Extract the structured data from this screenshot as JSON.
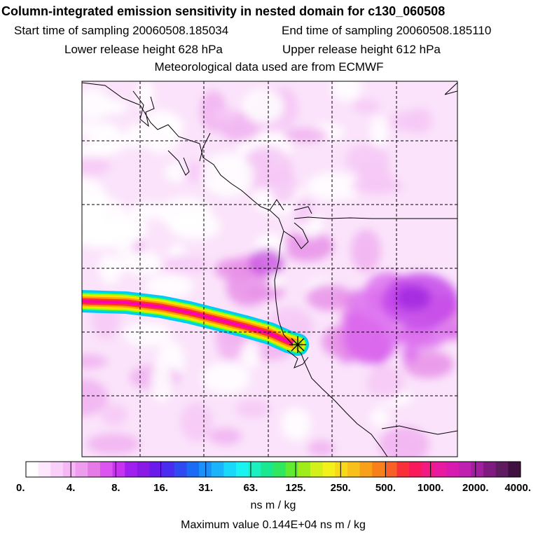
{
  "header": {
    "title": "Column-integrated emission sensitivity in nested domain for c130_060508",
    "start_sampling": "Start time of sampling 20060508.185034",
    "end_sampling": "End time of sampling 20060508.185110",
    "lower_release": "Lower release height  628 hPa",
    "upper_release": "Upper release height  612 hPa",
    "met_data": "Meteorological data used are from ECMWF"
  },
  "colorbar": {
    "colors": [
      "#ffffff",
      "#fde8fd",
      "#f9d0f9",
      "#f5b8f5",
      "#ee9cee",
      "#e67ae6",
      "#dc55f0",
      "#c833f0",
      "#a020f0",
      "#8a1ae6",
      "#6a1aea",
      "#4a2cf0",
      "#2e4af0",
      "#1a6cf4",
      "#1a90f8",
      "#1ab4fa",
      "#1ad8fa",
      "#1af4f0",
      "#1af0c0",
      "#1ae890",
      "#30e860",
      "#60ea30",
      "#a0ec1a",
      "#d4f01a",
      "#f4f01a",
      "#f8d81a",
      "#f8c01a",
      "#f8a01a",
      "#f8801a",
      "#f8602a",
      "#f8303a",
      "#f81a5a",
      "#f01a80",
      "#e81aa0",
      "#d81ab0",
      "#c020b0",
      "#a020a0",
      "#801a80",
      "#601a60",
      "#401040"
    ],
    "tick_labels": [
      "0.",
      "4.",
      "8.",
      "16.",
      "31.",
      "63.",
      "125.",
      "250.",
      "500.",
      "1000.",
      "2000.",
      "4000."
    ],
    "units": "ns m / kg"
  },
  "max_value_text": "Maximum value  0.144E+04 ns m / kg",
  "map": {
    "plume_colors": [
      "#ff00b0",
      "#ff3030",
      "#ffa000",
      "#ffe000",
      "#a0ff00",
      "#00e8b0",
      "#00c8ff"
    ],
    "release_marker": "star-cross"
  }
}
